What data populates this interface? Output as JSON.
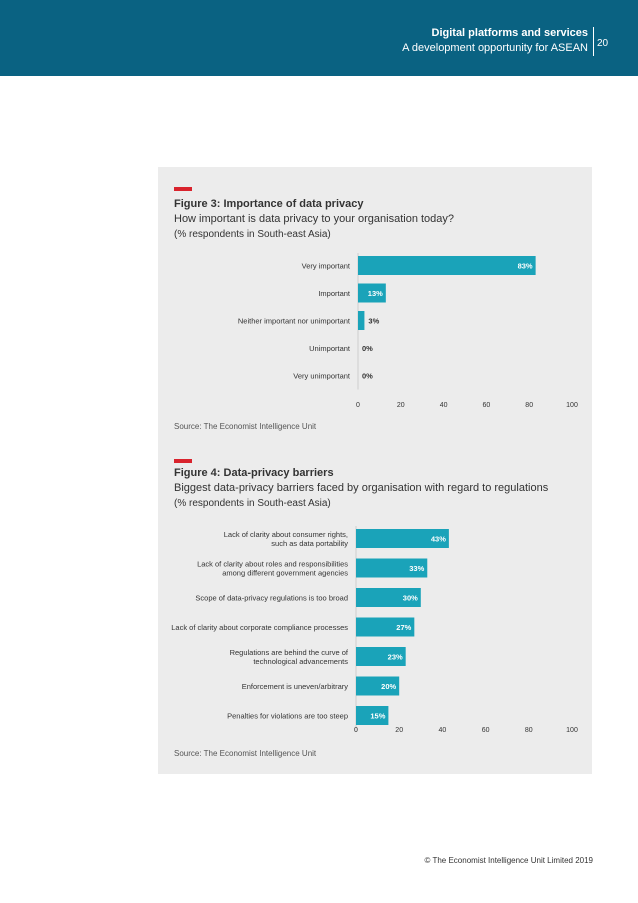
{
  "header": {
    "title": "Digital platforms and services",
    "subtitle": "A development opportunity for ASEAN",
    "page_number": "20"
  },
  "colors": {
    "bar": "#1aa3b9",
    "accent": "#d9232d",
    "header": "#0a6282"
  },
  "figure3": {
    "title": "Figure 3: Importance of data privacy",
    "subtitle": "How important is data privacy to your organisation today?",
    "note": "(% respondents in South-east Asia)",
    "source": "Source: The Economist Intelligence Unit"
  },
  "figure4": {
    "title": "Figure 4: Data-privacy barriers",
    "subtitle": "Biggest data-privacy barriers faced by organisation with regard to regulations",
    "note": "(% respondents in South-east Asia)",
    "source": "Source: The Economist Intelligence Unit"
  },
  "chart_data": [
    {
      "type": "bar",
      "orientation": "horizontal",
      "title": "Figure 3: Importance of data privacy",
      "categories": [
        "Very important",
        "Important",
        "Neither important nor unimportant",
        "Unimportant",
        "Very unimportant"
      ],
      "values": [
        83,
        13,
        3,
        0,
        0
      ],
      "labels": [
        "83%",
        "13%",
        "3%",
        "0%",
        "0%"
      ],
      "xlim": [
        0,
        100
      ],
      "ticks": [
        0,
        20,
        40,
        60,
        80,
        100
      ],
      "tick_labels": [
        "0",
        "20",
        "40",
        "60",
        "80",
        "100"
      ]
    },
    {
      "type": "bar",
      "orientation": "horizontal",
      "title": "Figure 4: Data-privacy barriers",
      "categories": [
        [
          "Lack of clarity about consumer rights,",
          "such as data portability"
        ],
        [
          "Lack of clarity about roles and responsibilities",
          "among different government agencies"
        ],
        [
          "Scope of data-privacy regulations is too broad"
        ],
        [
          "Lack of clarity about corporate compliance processes"
        ],
        [
          "Regulations are behind the curve of",
          "technological advancements"
        ],
        [
          "Enforcement is uneven/arbitrary"
        ],
        [
          "Penalties for violations are too steep"
        ]
      ],
      "values": [
        43,
        33,
        30,
        27,
        23,
        20,
        15
      ],
      "labels": [
        "43%",
        "33%",
        "30%",
        "27%",
        "23%",
        "20%",
        "15%"
      ],
      "xlim": [
        0,
        100
      ],
      "ticks": [
        0,
        20,
        40,
        60,
        80,
        100
      ],
      "tick_labels": [
        "0",
        "20",
        "40",
        "60",
        "80",
        "100"
      ]
    }
  ],
  "footer": {
    "copyright": "© The Economist Intelligence Unit Limited 2019"
  }
}
